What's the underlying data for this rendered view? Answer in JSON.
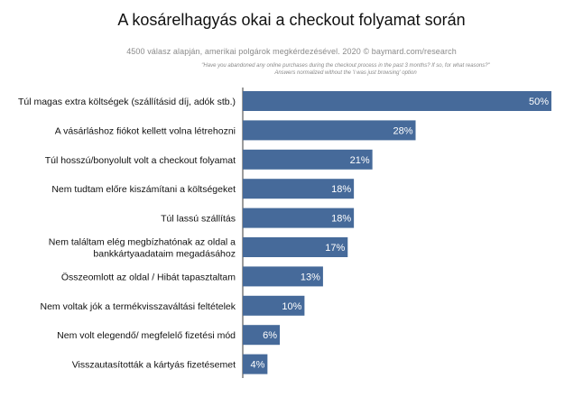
{
  "chart_data": {
    "type": "bar",
    "orientation": "horizontal",
    "title": "A kosárelhagyás okai a checkout folyamat során",
    "subtitle": "4500 válasz alapján, amerikai polgárok megkérdezésével. 2020 © baymard.com/research",
    "note_lines": [
      "\"Have you abandoned any online purchases during the checkout process in the past 3 months? If so, for what reasons?\"",
      "Answers normalized without the 'I was just browsing' option"
    ],
    "categories": [
      [
        "Túl magas extra költségek (szállításid díj, adók stb.)"
      ],
      [
        "A vásárláshoz fiókot kellett volna létrehozni"
      ],
      [
        "Túl hosszú/bonyolult volt a checkout folyamat"
      ],
      [
        "Nem tudtam előre kiszámítani a költségeket"
      ],
      [
        "Túl lassú szállítás"
      ],
      [
        "Nem találtam elég megbízhatónak az oldal a",
        "bankkártyaadataim megadásához"
      ],
      [
        "Összeomlott az oldal / Hibát tapasztaltam"
      ],
      [
        "Nem voltak jók a termékvisszaváltási feltételek"
      ],
      [
        "Nem volt elegendő/ megfelelő fizetési mód"
      ],
      [
        "Visszautasították a kártyás fizetésemet"
      ]
    ],
    "values": [
      50,
      28,
      21,
      18,
      18,
      17,
      13,
      10,
      6,
      4
    ],
    "value_labels": [
      "50%",
      "28%",
      "21%",
      "18%",
      "18%",
      "17%",
      "13%",
      "10%",
      "6%",
      "4%"
    ],
    "xlim": [
      0,
      50
    ],
    "bar_color": "#466a9a",
    "axis_color": "#3a3a3a",
    "grid": false,
    "legend": "none"
  }
}
